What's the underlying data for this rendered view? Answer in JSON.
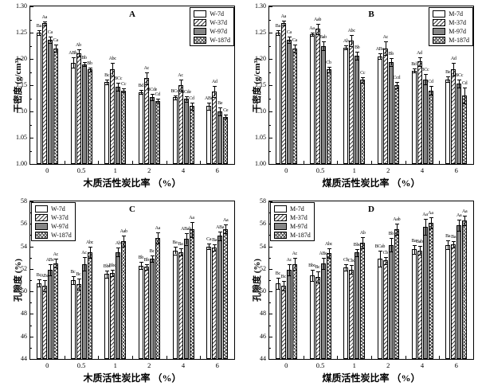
{
  "figure": {
    "panel_letters": [
      "A",
      "B",
      "C",
      "D"
    ],
    "colors": {
      "line": "#000000",
      "solid_fill": "#868686",
      "background": "#ffffff"
    },
    "legend_patterns": {
      "plain": "white",
      "hatch": "diagonal-lines",
      "solid": "gray",
      "cross": "crosshatch"
    }
  },
  "chart_data": [
    {
      "id": "A",
      "type": "bar",
      "panel_label": "A",
      "xlabel": "木质活性炭比率 （%）",
      "ylabel": "干密度 (g/cm³)",
      "ylim": [
        1.0,
        1.3
      ],
      "ytick_step": 0.05,
      "ydecimals": 2,
      "grid": false,
      "legend_position": "top-right",
      "categories": [
        "0",
        "0.5",
        "1",
        "2",
        "4",
        "6"
      ],
      "series": [
        {
          "name": "W-7d",
          "pattern": "plain",
          "values": [
            1.25,
            1.193,
            1.156,
            1.137,
            1.127,
            1.11
          ],
          "err": [
            0.004,
            0.01,
            0.004,
            0.004,
            0.004,
            0.007
          ],
          "sig": [
            "Ba",
            "ABb",
            "Bc",
            "Bd",
            "BCd",
            "ABd"
          ]
        },
        {
          "name": "W-37d",
          "pattern": "hatch",
          "values": [
            1.268,
            1.211,
            1.181,
            1.163,
            1.15,
            1.138
          ],
          "err": [
            0.004,
            0.007,
            0.012,
            0.012,
            0.011,
            0.01
          ],
          "sig": [
            "Aa",
            "Ab",
            "Abc",
            "Ac",
            "Ac",
            "Ad"
          ]
        },
        {
          "name": "W-97d",
          "pattern": "solid",
          "values": [
            1.237,
            1.19,
            1.147,
            1.127,
            1.124,
            1.1
          ],
          "err": [
            0.006,
            0.004,
            0.007,
            0.006,
            0.005,
            0.007
          ],
          "sig": [
            "Ca",
            "Bb",
            "BCc",
            "BCde",
            "BCde",
            "Be"
          ]
        },
        {
          "name": "W-187d",
          "pattern": "cross",
          "values": [
            1.22,
            1.18,
            1.14,
            1.12,
            1.11,
            1.09
          ],
          "err": [
            0.007,
            0.004,
            0.004,
            0.004,
            0.007,
            0.004
          ],
          "sig": [
            "Ca",
            "Bb",
            "Cc",
            "Cd",
            "Cd",
            "Ce"
          ]
        }
      ]
    },
    {
      "id": "B",
      "type": "bar",
      "panel_label": "B",
      "xlabel": "煤质活性炭比率 （%）",
      "ylabel": "干密度 (g/cm³)",
      "ylim": [
        1.0,
        1.3
      ],
      "ytick_step": 0.05,
      "ydecimals": 2,
      "grid": false,
      "legend_position": "top-right",
      "categories": [
        "0",
        "0.5",
        "1",
        "2",
        "4",
        "6"
      ],
      "series": [
        {
          "name": "M-7d",
          "pattern": "plain",
          "values": [
            1.25,
            1.247,
            1.222,
            1.205,
            1.178,
            1.161
          ],
          "err": [
            0.004,
            0.003,
            0.004,
            0.005,
            0.004,
            0.005
          ],
          "sig": [
            "Ba",
            "Aa",
            "Ab",
            "ABc",
            "Bd",
            "Be"
          ]
        },
        {
          "name": "M-37d",
          "pattern": "hatch",
          "values": [
            1.268,
            1.257,
            1.235,
            1.22,
            1.195,
            1.18
          ],
          "err": [
            0.005,
            0.01,
            0.01,
            0.013,
            0.008,
            0.012
          ],
          "sig": [
            "Aa",
            "Aab",
            "Abc",
            "Ac",
            "Ad",
            "Ad"
          ]
        },
        {
          "name": "M-97d",
          "pattern": "solid",
          "values": [
            1.237,
            1.225,
            1.206,
            1.194,
            1.161,
            1.153
          ],
          "err": [
            0.006,
            0.008,
            0.007,
            0.007,
            0.01,
            0.008
          ],
          "sig": [
            "Ca",
            "Bab",
            "Bb",
            "Bb",
            "BCc",
            "BCc"
          ]
        },
        {
          "name": "M-187d",
          "pattern": "cross",
          "values": [
            1.22,
            1.18,
            1.16,
            1.15,
            1.14,
            1.13
          ],
          "err": [
            0.008,
            0.005,
            0.005,
            0.006,
            0.008,
            0.015
          ],
          "sig": [
            "Ca",
            "Cb",
            "Cc",
            "Ccd",
            "Cd",
            "Cd"
          ]
        }
      ]
    },
    {
      "id": "C",
      "type": "bar",
      "panel_label": "C",
      "xlabel": "木质活性炭比率 （%）",
      "ylabel": "孔隙度 (%)",
      "ylim": [
        44,
        58
      ],
      "ytick_step": 2,
      "ydecimals": 0,
      "grid": false,
      "legend_position": "top-left",
      "categories": [
        "0",
        "0.5",
        "1",
        "2",
        "4",
        "6"
      ],
      "series": [
        {
          "name": "W-7d",
          "pattern": "plain",
          "values": [
            50.75,
            51.0,
            51.55,
            52.3,
            53.65,
            54.0
          ],
          "err": [
            0.3,
            0.35,
            0.3,
            0.3,
            0.35,
            0.25
          ],
          "sig": [
            "Bc",
            "Bc",
            "Bbc",
            "Bb",
            "Ba",
            "Ca"
          ]
        },
        {
          "name": "W-37d",
          "pattern": "hatch",
          "values": [
            50.5,
            50.65,
            51.65,
            52.2,
            53.5,
            53.9
          ],
          "err": [
            0.5,
            0.5,
            0.3,
            0.25,
            0.3,
            0.3
          ],
          "sig": [
            "ABc",
            "Bc",
            "Bbc",
            "Bb",
            "Ba",
            "Ba"
          ]
        },
        {
          "name": "W-97d",
          "pattern": "solid",
          "values": [
            51.95,
            52.45,
            53.5,
            52.9,
            54.65,
            54.95
          ],
          "err": [
            0.5,
            0.6,
            0.4,
            0.3,
            0.5,
            0.4
          ],
          "sig": [
            "ABc",
            "Ac",
            "Ab",
            "Bc",
            "ABab",
            "ABa"
          ]
        },
        {
          "name": "W-187d",
          "pattern": "cross",
          "values": [
            52.5,
            53.45,
            54.45,
            54.75,
            55.5,
            55.55
          ],
          "err": [
            0.4,
            0.5,
            0.5,
            0.5,
            0.7,
            0.4
          ],
          "sig": [
            "Ac",
            "Abc",
            "Aab",
            "Aa",
            "Aa",
            "Aa"
          ]
        }
      ]
    },
    {
      "id": "D",
      "type": "bar",
      "panel_label": "D",
      "xlabel": "煤质活性炭比率 （%）",
      "ylabel": "孔隙度 (%)",
      "ylim": [
        44,
        58
      ],
      "ytick_step": 2,
      "ydecimals": 0,
      "grid": false,
      "legend_position": "top-left",
      "categories": [
        "0",
        "0.5",
        "1",
        "2",
        "4",
        "6"
      ],
      "series": [
        {
          "name": "M-7d",
          "pattern": "plain",
          "values": [
            50.7,
            51.4,
            52.15,
            52.9,
            53.75,
            54.15
          ],
          "err": [
            0.5,
            0.5,
            0.3,
            0.7,
            0.4,
            0.4
          ],
          "sig": [
            "Bc",
            "Bbc",
            "Cb",
            "BCab",
            "Ba",
            "Ba"
          ]
        },
        {
          "name": "M-37d",
          "pattern": "hatch",
          "values": [
            50.5,
            51.3,
            51.95,
            52.75,
            53.65,
            54.2
          ],
          "err": [
            0.4,
            0.5,
            0.4,
            0.3,
            0.4,
            0.3
          ],
          "sig": [
            "Bc",
            "Bc",
            "Cbc",
            "Cb",
            "Bab",
            "Ba"
          ]
        },
        {
          "name": "M-97d",
          "pattern": "solid",
          "values": [
            51.9,
            52.5,
            53.45,
            54.15,
            55.75,
            55.9
          ],
          "err": [
            0.5,
            0.5,
            0.3,
            0.6,
            0.7,
            0.5
          ],
          "sig": [
            "Ac",
            "ABc",
            "Bbc",
            "Bb",
            "Aa",
            "Aa"
          ]
        },
        {
          "name": "M-187d",
          "pattern": "cross",
          "values": [
            52.45,
            53.4,
            54.35,
            55.5,
            56.1,
            56.3
          ],
          "err": [
            0.5,
            0.4,
            0.5,
            0.5,
            0.5,
            0.4
          ],
          "sig": [
            "Ac",
            "Abc",
            "Ab",
            "Aab",
            "Aa",
            "Aa"
          ]
        }
      ]
    }
  ]
}
